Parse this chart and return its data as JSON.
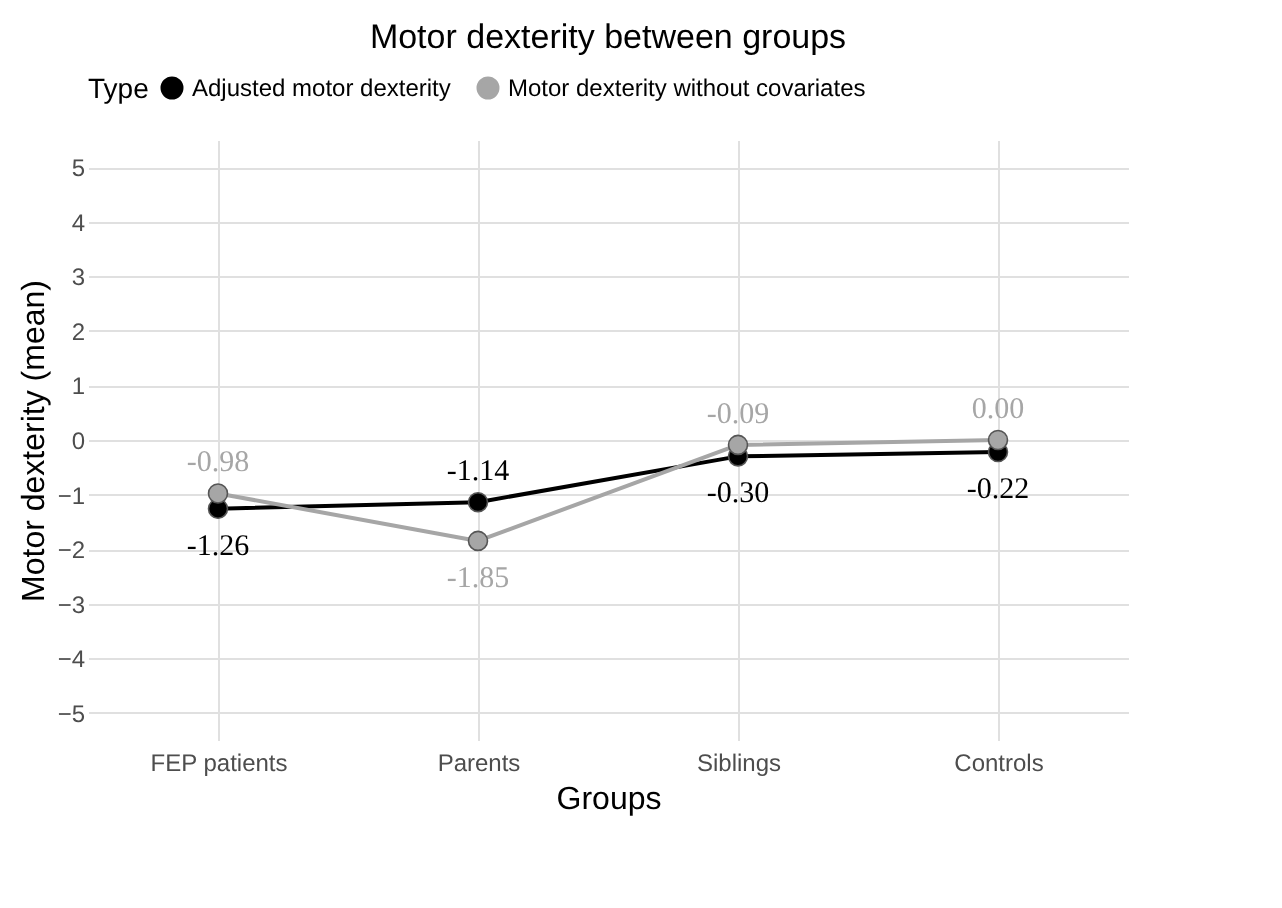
{
  "chart_data": {
    "type": "line",
    "title": "Motor dexterity between groups",
    "xlabel": "Groups",
    "ylabel": "Motor dexterity (mean)",
    "legend_title": "Type",
    "legend": "top",
    "categories": [
      "FEP patients",
      "Parents",
      "Siblings",
      "Controls"
    ],
    "series": [
      {
        "name": "Adjusted motor dexterity",
        "color": "#000000",
        "values": [
          -1.26,
          -1.14,
          -0.3,
          -0.22
        ],
        "value_labels": [
          "-1.26",
          "-1.14",
          "-0.30",
          "-0.22"
        ]
      },
      {
        "name": "Motor dexterity without covariates",
        "color": "#a6a6a6",
        "values": [
          -0.98,
          -1.85,
          -0.09,
          0.0
        ],
        "value_labels": [
          "-0.98",
          "-1.85",
          "-0.09",
          "0.00"
        ]
      }
    ],
    "ylim": [
      -5.5,
      5.5
    ],
    "yticks": [
      -5,
      -4,
      -3,
      -2,
      -1,
      0,
      1,
      2,
      3,
      4,
      5
    ],
    "grid": true,
    "marker": "circle",
    "line_style": "solid"
  }
}
